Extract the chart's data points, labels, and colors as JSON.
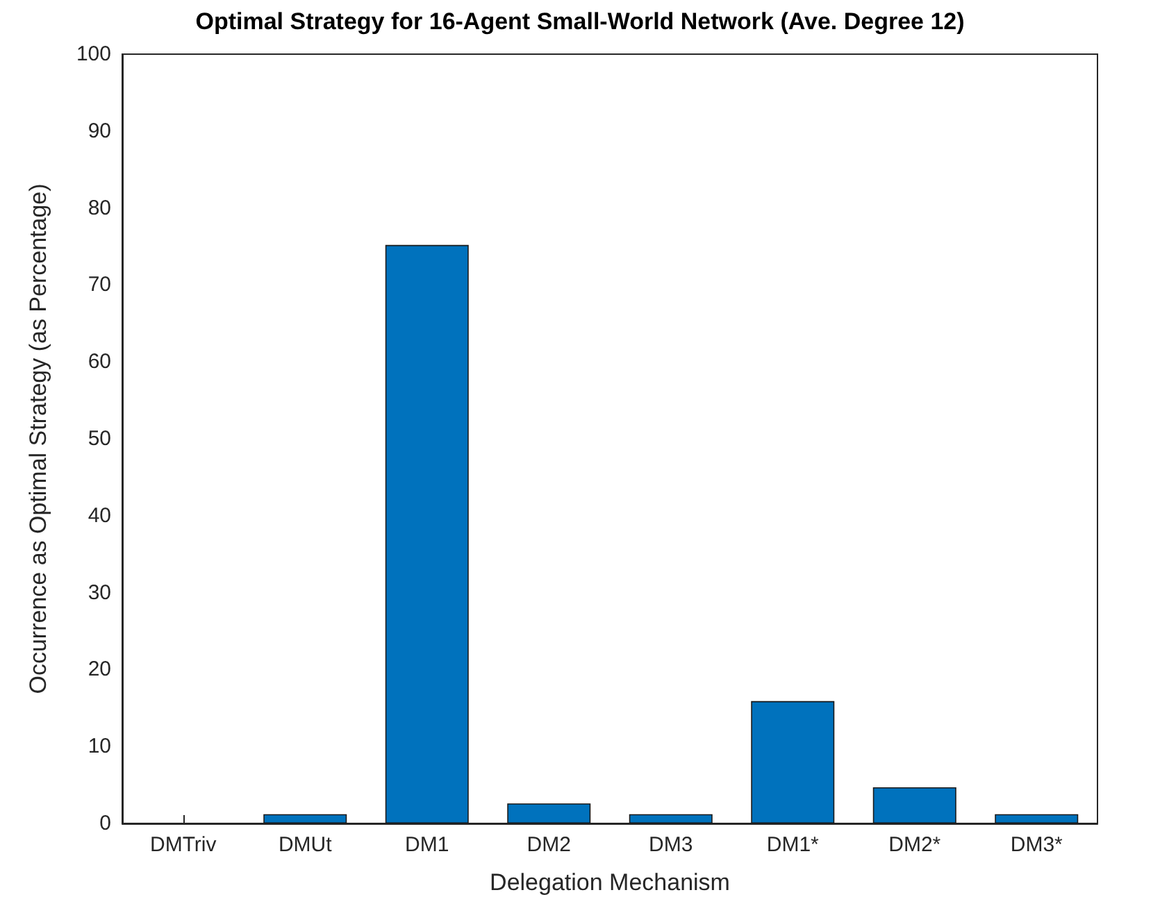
{
  "chart_data": {
    "type": "bar",
    "title": "Optimal Strategy for 16-Agent Small-World Network (Ave. Degree 12)",
    "xlabel": "Delegation Mechanism",
    "ylabel": "Occurrence as Optimal Strategy (as Percentage)",
    "categories": [
      "DMTriv",
      "DMUt",
      "DM1",
      "DM2",
      "DM3",
      "DM1*",
      "DM2*",
      "DM3*"
    ],
    "values": [
      0,
      1.2,
      75.2,
      2.6,
      1.2,
      15.9,
      4.7,
      1.2
    ],
    "color": "#0072bd",
    "ylim": [
      0,
      100
    ],
    "yticks": [
      0,
      10,
      20,
      30,
      40,
      50,
      60,
      70,
      80,
      90,
      100
    ],
    "grid": false
  }
}
